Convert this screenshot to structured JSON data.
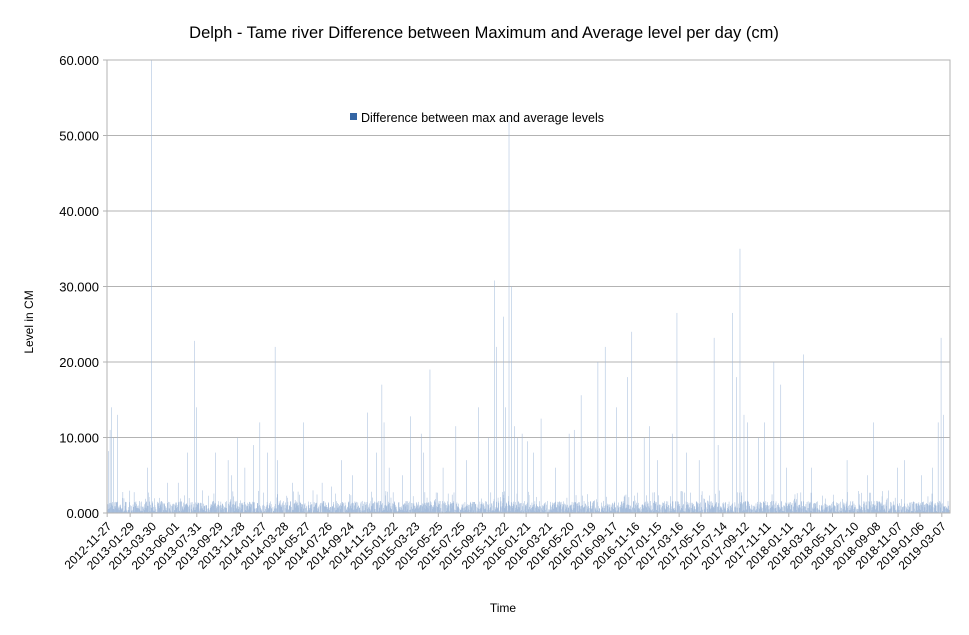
{
  "chart_data": {
    "type": "bar",
    "title": "Delph - Tame river Difference between Maximum and Average level per day (cm)",
    "xlabel": "Time",
    "ylabel": "Level in CM",
    "ylim": [
      0,
      60
    ],
    "yticks": [
      "0.000",
      "10.000",
      "20.000",
      "30.000",
      "40.000",
      "50.000",
      "60.000"
    ],
    "grid": true,
    "legend_position": "top-center",
    "series": [
      {
        "name": "Difference between max and average levels",
        "color": "#9fb8d9",
        "legend_color": "#3465a4",
        "start": "2012-11-27",
        "end": "2019-03-29",
        "baseline_max": 1.6,
        "peaks": [
          [
            "2012-12-01",
            8.2
          ],
          [
            "2012-12-05",
            11.0
          ],
          [
            "2012-12-09",
            14.0
          ],
          [
            "2012-12-15",
            10.0
          ],
          [
            "2012-12-26",
            13.0
          ],
          [
            "2013-01-08",
            2.0
          ],
          [
            "2013-03-18",
            6.0
          ],
          [
            "2013-03-29",
            60.0
          ],
          [
            "2013-04-20",
            2.0
          ],
          [
            "2013-05-12",
            4.0
          ],
          [
            "2013-06-10",
            4.0
          ],
          [
            "2013-07-05",
            8.0
          ],
          [
            "2013-07-25",
            22.8
          ],
          [
            "2013-07-30",
            14.0
          ],
          [
            "2013-08-15",
            3.0
          ],
          [
            "2013-09-20",
            8.0
          ],
          [
            "2013-10-25",
            7.0
          ],
          [
            "2013-11-04",
            5.0
          ],
          [
            "2013-11-20",
            10.0
          ],
          [
            "2013-12-10",
            6.0
          ],
          [
            "2014-01-02",
            9.0
          ],
          [
            "2014-01-20",
            12.0
          ],
          [
            "2014-02-10",
            8.0
          ],
          [
            "2014-03-03",
            22.0
          ],
          [
            "2014-03-10",
            7.0
          ],
          [
            "2014-04-20",
            4.0
          ],
          [
            "2014-05-20",
            12.0
          ],
          [
            "2014-06-15",
            3.0
          ],
          [
            "2014-07-10",
            4.0
          ],
          [
            "2014-08-05",
            3.5
          ],
          [
            "2014-09-01",
            7.0
          ],
          [
            "2014-10-01",
            5.0
          ],
          [
            "2014-11-12",
            13.3
          ],
          [
            "2014-12-06",
            8.0
          ],
          [
            "2014-12-21",
            17.0
          ],
          [
            "2014-12-27",
            12.0
          ],
          [
            "2015-01-10",
            6.0
          ],
          [
            "2015-02-15",
            5.0
          ],
          [
            "2015-03-10",
            12.8
          ],
          [
            "2015-04-08",
            10.5
          ],
          [
            "2015-04-15",
            8.0
          ],
          [
            "2015-05-02",
            19.0
          ],
          [
            "2015-06-07",
            6.0
          ],
          [
            "2015-07-12",
            11.5
          ],
          [
            "2015-08-10",
            7.0
          ],
          [
            "2015-09-12",
            14.0
          ],
          [
            "2015-10-10",
            10.0
          ],
          [
            "2015-10-26",
            30.8
          ],
          [
            "2015-11-01",
            22.0
          ],
          [
            "2015-11-20",
            26.0
          ],
          [
            "2015-11-26",
            14.0
          ],
          [
            "2015-12-05",
            52.0
          ],
          [
            "2015-12-12",
            30.0
          ],
          [
            "2015-12-20",
            11.5
          ],
          [
            "2015-12-28",
            10.0
          ],
          [
            "2016-01-10",
            10.5
          ],
          [
            "2016-01-25",
            9.5
          ],
          [
            "2016-02-10",
            8.0
          ],
          [
            "2016-03-02",
            12.5
          ],
          [
            "2016-04-10",
            6.0
          ],
          [
            "2016-05-18",
            10.5
          ],
          [
            "2016-06-01",
            11.0
          ],
          [
            "2016-06-20",
            15.6
          ],
          [
            "2016-08-05",
            20.0
          ],
          [
            "2016-08-25",
            22.0
          ],
          [
            "2016-09-25",
            14.0
          ],
          [
            "2016-10-25",
            18.0
          ],
          [
            "2016-11-06",
            24.0
          ],
          [
            "2016-12-10",
            10.0
          ],
          [
            "2016-12-25",
            11.5
          ],
          [
            "2017-01-15",
            7.0
          ],
          [
            "2017-02-25",
            10.5
          ],
          [
            "2017-03-10",
            26.5
          ],
          [
            "2017-04-05",
            8.0
          ],
          [
            "2017-05-10",
            7.0
          ],
          [
            "2017-06-20",
            23.2
          ],
          [
            "2017-07-01",
            9.0
          ],
          [
            "2017-08-10",
            26.5
          ],
          [
            "2017-08-20",
            18.0
          ],
          [
            "2017-08-30",
            35.0
          ],
          [
            "2017-09-10",
            13.0
          ],
          [
            "2017-09-20",
            12.0
          ],
          [
            "2017-10-20",
            10.0
          ],
          [
            "2017-11-05",
            12.0
          ],
          [
            "2017-12-01",
            20.0
          ],
          [
            "2017-12-20",
            17.0
          ],
          [
            "2018-01-05",
            6.0
          ],
          [
            "2018-02-20",
            21.0
          ],
          [
            "2018-03-15",
            6.0
          ],
          [
            "2018-06-20",
            7.0
          ],
          [
            "2018-08-15",
            5.0
          ],
          [
            "2018-09-01",
            12.0
          ],
          [
            "2018-11-05",
            6.0
          ],
          [
            "2018-11-25",
            7.0
          ],
          [
            "2019-01-10",
            5.0
          ],
          [
            "2019-02-10",
            6.0
          ],
          [
            "2019-02-25",
            12.0
          ],
          [
            "2019-03-05",
            23.2
          ],
          [
            "2019-03-12",
            13.0
          ]
        ]
      }
    ],
    "x_tick_labels": [
      "2012-11-27",
      "2013-01-29",
      "2013-03-30",
      "2013-06-01",
      "2013-07-31",
      "2013-09-29",
      "2013-11-28",
      "2014-01-27",
      "2014-03-28",
      "2014-05-27",
      "2014-07-26",
      "2014-09-24",
      "2014-11-23",
      "2015-01-22",
      "2015-03-23",
      "2015-05-25",
      "2015-07-25",
      "2015-09-23",
      "2015-11-22",
      "2016-01-21",
      "2016-03-21",
      "2016-05-20",
      "2016-07-19",
      "2016-09-17",
      "2016-11-16",
      "2017-01-15",
      "2017-03-16",
      "2017-05-15",
      "2017-07-14",
      "2017-09-12",
      "2017-11-11",
      "2018-01-11",
      "2018-03-12",
      "2018-05-11",
      "2018-07-10",
      "2018-09-08",
      "2018-11-07",
      "2019-01-06",
      "2019-03-07"
    ]
  }
}
